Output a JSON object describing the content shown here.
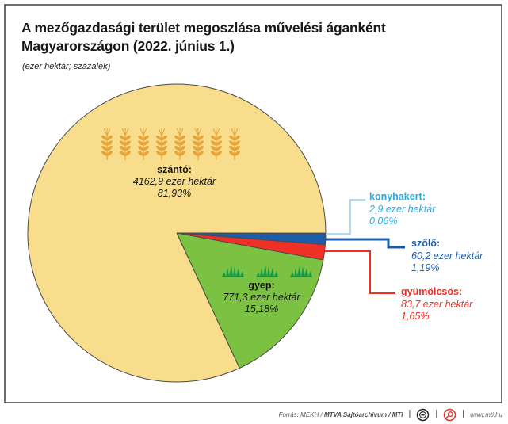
{
  "header": {
    "title_line1": "A mezőgazdasági terület megoszlása művelési áganként",
    "title_line2": "Magyarországon (2022. június 1.)",
    "subtitle": "(ezer hektár; százalék)"
  },
  "chart_data": {
    "type": "pie",
    "title": "A mezőgazdasági terület megoszlása művelési áganként Magyarországon (2022. június 1.)",
    "unit": "ezer hektár; százalék",
    "direction": "clockwise",
    "start_angle_deg": 0,
    "outline_color": "#4a4a4a",
    "slices": [
      {
        "name": "konyhakert",
        "label": "konyhakert:",
        "value": 2.9,
        "value_text": "2,9 ezer hektár",
        "percent": 0.06,
        "percent_text": "0,06%",
        "color": "#aadcee",
        "text_color": "#2ca9e0",
        "leader_color": "#a9dcee"
      },
      {
        "name": "szolo",
        "label": "szőlő:",
        "value": 60.2,
        "value_text": "60,2 ezer hektár",
        "percent": 1.19,
        "percent_text": "1,19%",
        "color": "#1c5ca8",
        "text_color": "#1c5ca8",
        "leader_color": "#1c5ca8"
      },
      {
        "name": "gyumolcsos",
        "label": "gyümölcsös:",
        "value": 83.7,
        "value_text": "83,7 ezer hektár",
        "percent": 1.65,
        "percent_text": "1,65%",
        "color": "#ee3124",
        "text_color": "#ee3124",
        "leader_color": "#ee3124"
      },
      {
        "name": "gyep",
        "label": "gyep:",
        "value": 771.3,
        "value_text": "771,3 ezer hektár",
        "percent": 15.18,
        "percent_text": "15,18%",
        "color": "#7cc242",
        "text_color": "#141414"
      },
      {
        "name": "szanto",
        "label": "szántó:",
        "value": 4162.9,
        "value_text": "4162,9 ezer hektár",
        "percent": 81.93,
        "percent_text": "81,93%",
        "color": "#f8de8c",
        "text_color": "#141414"
      }
    ]
  },
  "decorations": {
    "wheat_icon_count": 8,
    "wheat_color": "#e7a63c",
    "grass_icon_count": 3,
    "grass_color": "#149b44"
  },
  "footer": {
    "source_prefix": "Forrás: MEKH / ",
    "source_bold": "MTVA Sajtóarchívum / MTI",
    "separator": "|",
    "url": "www.mti.hu",
    "mtva_icon_color": "#26272c",
    "mti_icon_color": "#e4322b"
  }
}
